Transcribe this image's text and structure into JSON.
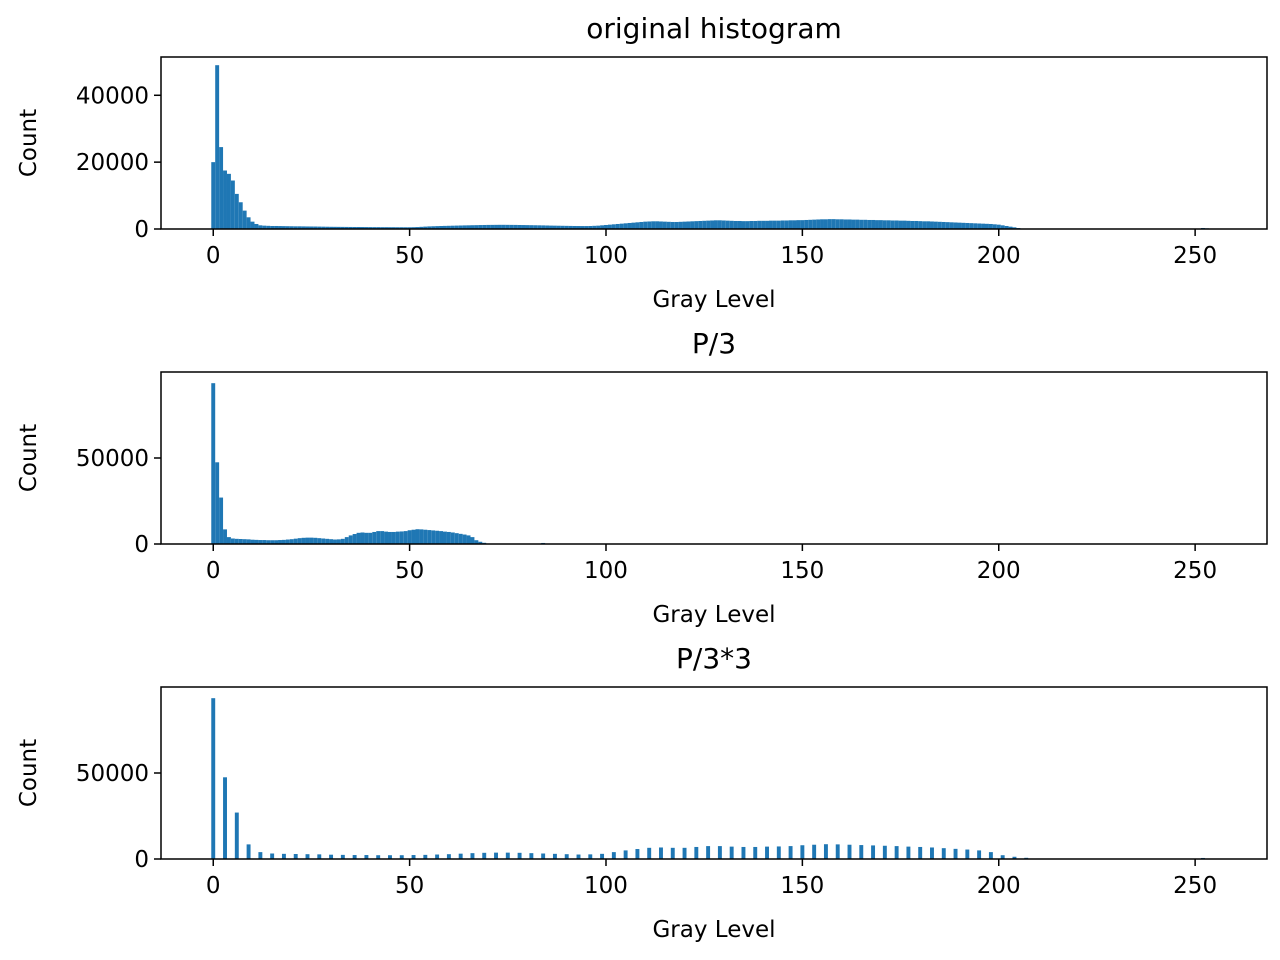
{
  "chart_data": [
    {
      "type": "bar",
      "title": "original histogram",
      "xlabel": "Gray Level",
      "ylabel": "Count",
      "color": "#1f77b4",
      "xlim": [
        -13.3,
        268.3
      ],
      "ylim": [
        0,
        51450
      ],
      "xticks": [
        0,
        50,
        100,
        150,
        200,
        250
      ],
      "yticks": [
        0,
        20000,
        40000
      ],
      "x": [
        0,
        1,
        2,
        3,
        4,
        5,
        6,
        7,
        8,
        9,
        10,
        11,
        12,
        13,
        14,
        15,
        16,
        17,
        18,
        19,
        20,
        21,
        22,
        23,
        24,
        25,
        26,
        27,
        28,
        29,
        30,
        31,
        32,
        33,
        34,
        35,
        36,
        37,
        38,
        39,
        40,
        41,
        42,
        43,
        44,
        45,
        46,
        47,
        48,
        49,
        50,
        51,
        52,
        53,
        54,
        55,
        56,
        57,
        58,
        59,
        60,
        61,
        62,
        63,
        64,
        65,
        66,
        67,
        68,
        69,
        70,
        71,
        72,
        73,
        74,
        75,
        76,
        77,
        78,
        79,
        80,
        81,
        82,
        83,
        84,
        85,
        86,
        87,
        88,
        89,
        90,
        91,
        92,
        93,
        94,
        95,
        96,
        97,
        98,
        99,
        100,
        101,
        102,
        103,
        104,
        105,
        106,
        107,
        108,
        109,
        110,
        111,
        112,
        113,
        114,
        115,
        116,
        117,
        118,
        119,
        120,
        121,
        122,
        123,
        124,
        125,
        126,
        127,
        128,
        129,
        130,
        131,
        132,
        133,
        134,
        135,
        136,
        137,
        138,
        139,
        140,
        141,
        142,
        143,
        144,
        145,
        146,
        147,
        148,
        149,
        150,
        151,
        152,
        153,
        154,
        155,
        156,
        157,
        158,
        159,
        160,
        161,
        162,
        163,
        164,
        165,
        166,
        167,
        168,
        169,
        170,
        171,
        172,
        173,
        174,
        175,
        176,
        177,
        178,
        179,
        180,
        181,
        182,
        183,
        184,
        185,
        186,
        187,
        188,
        189,
        190,
        191,
        192,
        193,
        194,
        195,
        196,
        197,
        198,
        199,
        200,
        201,
        202,
        203,
        204,
        205,
        206,
        207,
        208,
        209,
        210,
        211,
        212,
        213,
        214,
        215,
        216,
        217,
        218,
        219,
        220,
        221,
        222,
        223,
        224,
        225,
        226,
        227,
        228,
        229,
        230,
        231,
        232,
        233,
        234,
        235,
        236,
        237,
        238,
        239,
        240,
        241,
        242,
        243,
        244,
        245,
        246,
        247,
        248,
        249,
        250,
        251,
        252,
        253,
        254,
        255
      ],
      "values": [
        20000,
        49000,
        24500,
        17500,
        16500,
        14500,
        10500,
        8000,
        5500,
        3500,
        2200,
        1500,
        1100,
        1000,
        950,
        900,
        900,
        880,
        860,
        840,
        820,
        800,
        800,
        780,
        760,
        750,
        740,
        720,
        700,
        680,
        660,
        650,
        640,
        630,
        620,
        610,
        600,
        600,
        590,
        580,
        570,
        560,
        560,
        550,
        550,
        540,
        540,
        530,
        530,
        520,
        520,
        540,
        580,
        650,
        720,
        780,
        820,
        860,
        900,
        930,
        960,
        990,
        1020,
        1050,
        1080,
        1100,
        1130,
        1150,
        1180,
        1200,
        1220,
        1230,
        1240,
        1250,
        1250,
        1240,
        1230,
        1220,
        1200,
        1180,
        1160,
        1140,
        1120,
        1100,
        1080,
        1050,
        1020,
        1000,
        980,
        960,
        940,
        920,
        900,
        890,
        880,
        880,
        900,
        950,
        1000,
        1100,
        1200,
        1300,
        1400,
        1500,
        1600,
        1700,
        1800,
        1900,
        2000,
        2100,
        2200,
        2250,
        2300,
        2300,
        2250,
        2200,
        2150,
        2100,
        2100,
        2150,
        2200,
        2250,
        2300,
        2350,
        2400,
        2450,
        2500,
        2550,
        2600,
        2600,
        2550,
        2500,
        2450,
        2400,
        2400,
        2350,
        2350,
        2400,
        2400,
        2450,
        2450,
        2450,
        2500,
        2500,
        2500,
        2550,
        2550,
        2600,
        2600,
        2650,
        2650,
        2700,
        2750,
        2800,
        2850,
        2900,
        2900,
        2950,
        2950,
        2900,
        2900,
        2850,
        2850,
        2800,
        2800,
        2750,
        2750,
        2700,
        2700,
        2650,
        2650,
        2600,
        2600,
        2550,
        2550,
        2500,
        2500,
        2450,
        2400,
        2400,
        2350,
        2300,
        2300,
        2250,
        2200,
        2150,
        2100,
        2050,
        2000,
        1950,
        1900,
        1850,
        1800,
        1750,
        1700,
        1650,
        1600,
        1550,
        1500,
        1400,
        1300,
        1100,
        900,
        700,
        500,
        300,
        100,
        0,
        0,
        0,
        0,
        0,
        0,
        0,
        0,
        0,
        0,
        0,
        0,
        0,
        0,
        0,
        0,
        0,
        0,
        0,
        0,
        0,
        0,
        0,
        0,
        0,
        0,
        0,
        0,
        0,
        0,
        0,
        0,
        0,
        0,
        0,
        0,
        0,
        0,
        0,
        0,
        0,
        0,
        0,
        0,
        100,
        300,
        200,
        0,
        0
      ]
    },
    {
      "type": "bar",
      "title": "P/3",
      "xlabel": "Gray Level",
      "ylabel": "Count",
      "color": "#1f77b4",
      "xlim": [
        -13.3,
        268.3
      ],
      "ylim": [
        0,
        100000
      ],
      "xticks": [
        0,
        50,
        100,
        150,
        200,
        250
      ],
      "yticks": [
        0,
        50000
      ],
      "x": [
        0,
        1,
        2,
        3,
        4,
        5,
        6,
        7,
        8,
        9,
        10,
        11,
        12,
        13,
        14,
        15,
        16,
        17,
        18,
        19,
        20,
        21,
        22,
        23,
        24,
        25,
        26,
        27,
        28,
        29,
        30,
        31,
        32,
        33,
        34,
        35,
        36,
        37,
        38,
        39,
        40,
        41,
        42,
        43,
        44,
        45,
        46,
        47,
        48,
        49,
        50,
        51,
        52,
        53,
        54,
        55,
        56,
        57,
        58,
        59,
        60,
        61,
        62,
        63,
        64,
        65,
        66,
        67,
        68,
        69,
        70,
        71,
        72,
        73,
        74,
        75,
        76,
        77,
        78,
        79,
        80,
        81,
        82,
        83,
        84,
        85
      ],
      "values": [
        93500,
        47500,
        27000,
        8500,
        4000,
        3200,
        3000,
        2900,
        2800,
        2700,
        2500,
        2400,
        2300,
        2300,
        2200,
        2200,
        2200,
        2300,
        2400,
        2600,
        2800,
        3100,
        3400,
        3600,
        3700,
        3700,
        3600,
        3400,
        3200,
        3000,
        2800,
        2600,
        2700,
        3000,
        4000,
        5000,
        5800,
        6500,
        6700,
        6500,
        6500,
        7000,
        7500,
        7500,
        7200,
        7000,
        7000,
        7200,
        7300,
        7500,
        8000,
        8300,
        8600,
        8500,
        8300,
        8100,
        7900,
        7700,
        7500,
        7200,
        7000,
        6700,
        6300,
        5900,
        5500,
        5000,
        4000,
        2200,
        1300,
        700,
        300,
        0,
        0,
        0,
        0,
        0,
        0,
        0,
        0,
        0,
        0,
        0,
        0,
        0,
        600,
        0
      ]
    },
    {
      "type": "bar",
      "title": "P/3*3",
      "xlabel": "Gray Level",
      "ylabel": "Count",
      "color": "#1f77b4",
      "xlim": [
        -13.3,
        268.3
      ],
      "ylim": [
        0,
        100000
      ],
      "xticks": [
        0,
        50,
        100,
        150,
        200,
        250
      ],
      "yticks": [
        0,
        50000
      ],
      "x": [
        0,
        3,
        6,
        9,
        12,
        15,
        18,
        21,
        24,
        27,
        30,
        33,
        36,
        39,
        42,
        45,
        48,
        51,
        54,
        57,
        60,
        63,
        66,
        69,
        72,
        75,
        78,
        81,
        84,
        87,
        90,
        93,
        96,
        99,
        102,
        105,
        108,
        111,
        114,
        117,
        120,
        123,
        126,
        129,
        132,
        135,
        138,
        141,
        144,
        147,
        150,
        153,
        156,
        159,
        162,
        165,
        168,
        171,
        174,
        177,
        180,
        183,
        186,
        189,
        192,
        195,
        198,
        201,
        204,
        207,
        210,
        213,
        216,
        219,
        222,
        225,
        228,
        231,
        234,
        237,
        240,
        243,
        246,
        249,
        252,
        255
      ],
      "values": [
        93500,
        47500,
        27000,
        8500,
        4000,
        3200,
        3000,
        2900,
        2800,
        2700,
        2500,
        2400,
        2300,
        2300,
        2200,
        2200,
        2200,
        2300,
        2400,
        2600,
        2800,
        3100,
        3400,
        3600,
        3700,
        3700,
        3600,
        3400,
        3200,
        3000,
        2800,
        2600,
        2700,
        3000,
        4000,
        5000,
        5800,
        6500,
        6700,
        6500,
        6500,
        7000,
        7500,
        7500,
        7200,
        7000,
        7000,
        7200,
        7300,
        7500,
        8000,
        8300,
        8600,
        8500,
        8300,
        8100,
        7900,
        7700,
        7500,
        7200,
        7000,
        6700,
        6300,
        5900,
        5500,
        5000,
        4000,
        2200,
        1300,
        700,
        300,
        0,
        0,
        0,
        0,
        0,
        0,
        0,
        0,
        0,
        0,
        0,
        0,
        0,
        600,
        0
      ]
    }
  ]
}
